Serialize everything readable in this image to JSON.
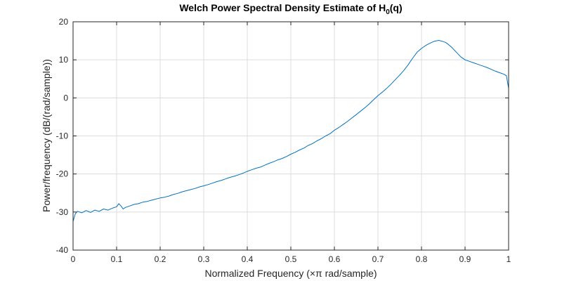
{
  "chart_data": {
    "type": "line",
    "title": {
      "prefix": "Welch Power Spectral Density Estimate of H",
      "subscript": "0",
      "suffix": "(q)"
    },
    "xlabel": "Normalized Frequency  (×π rad/sample)",
    "ylabel": "Power/frequency (dB/(rad/sample))",
    "xlim": [
      0,
      1
    ],
    "ylim": [
      -40,
      20
    ],
    "xticks": [
      0,
      0.1,
      0.2,
      0.3,
      0.4,
      0.5,
      0.6,
      0.7,
      0.8,
      0.9,
      1
    ],
    "xtick_labels": [
      "0",
      "0.1",
      "0.2",
      "0.3",
      "0.4",
      "0.5",
      "0.6",
      "0.7",
      "0.8",
      "0.9",
      "1"
    ],
    "yticks": [
      -40,
      -30,
      -20,
      -10,
      0,
      10,
      20
    ],
    "ytick_labels": [
      "-40",
      "-30",
      "-20",
      "-10",
      "0",
      "10",
      "20"
    ],
    "grid": true,
    "color": "#0072BD",
    "series": [
      {
        "x": [
          0,
          0.005,
          0.01,
          0.02,
          0.03,
          0.04,
          0.05,
          0.06,
          0.07,
          0.08,
          0.09,
          0.1,
          0.105,
          0.11,
          0.115,
          0.12,
          0.13,
          0.14,
          0.15,
          0.16,
          0.17,
          0.18,
          0.19,
          0.2,
          0.21,
          0.22,
          0.23,
          0.24,
          0.25,
          0.26,
          0.27,
          0.28,
          0.29,
          0.3,
          0.31,
          0.32,
          0.33,
          0.34,
          0.35,
          0.36,
          0.37,
          0.38,
          0.39,
          0.4,
          0.41,
          0.42,
          0.43,
          0.44,
          0.45,
          0.46,
          0.47,
          0.48,
          0.49,
          0.5,
          0.51,
          0.52,
          0.53,
          0.54,
          0.55,
          0.56,
          0.57,
          0.58,
          0.59,
          0.6,
          0.61,
          0.62,
          0.63,
          0.64,
          0.65,
          0.66,
          0.67,
          0.68,
          0.69,
          0.7,
          0.71,
          0.72,
          0.73,
          0.74,
          0.75,
          0.76,
          0.77,
          0.78,
          0.79,
          0.8,
          0.81,
          0.82,
          0.83,
          0.84,
          0.85,
          0.855,
          0.86,
          0.87,
          0.88,
          0.89,
          0.9,
          0.91,
          0.92,
          0.93,
          0.94,
          0.95,
          0.96,
          0.97,
          0.98,
          0.99,
          0.995,
          1
        ],
        "y": [
          -32.5,
          -30.5,
          -29.8,
          -30.2,
          -29.6,
          -30.1,
          -29.5,
          -29.8,
          -29.2,
          -29.5,
          -29.0,
          -28.6,
          -27.8,
          -28.4,
          -29.2,
          -28.8,
          -28.4,
          -28.0,
          -27.8,
          -27.4,
          -27.2,
          -26.9,
          -26.6,
          -26.3,
          -26.1,
          -25.8,
          -25.4,
          -25.1,
          -24.7,
          -24.4,
          -24.1,
          -23.8,
          -23.4,
          -23.1,
          -22.8,
          -22.4,
          -22.0,
          -21.7,
          -21.3,
          -20.9,
          -20.6,
          -20.2,
          -19.8,
          -19.3,
          -18.9,
          -18.5,
          -18.2,
          -17.7,
          -17.2,
          -16.8,
          -16.3,
          -15.9,
          -15.4,
          -14.8,
          -14.3,
          -13.7,
          -13.2,
          -12.5,
          -12.0,
          -11.3,
          -10.7,
          -10.0,
          -9.4,
          -8.5,
          -7.8,
          -7.0,
          -6.2,
          -5.3,
          -4.4,
          -3.5,
          -2.6,
          -1.6,
          -0.5,
          0.6,
          1.5,
          2.5,
          3.6,
          4.8,
          6.0,
          7.3,
          8.8,
          10.5,
          12.0,
          13.0,
          13.8,
          14.4,
          14.9,
          15.1,
          14.8,
          14.6,
          14.2,
          13.2,
          12.0,
          10.8,
          10.0,
          9.6,
          9.2,
          8.8,
          8.4,
          8.0,
          7.5,
          7.0,
          6.6,
          6.2,
          5.8,
          2.5
        ]
      }
    ]
  }
}
